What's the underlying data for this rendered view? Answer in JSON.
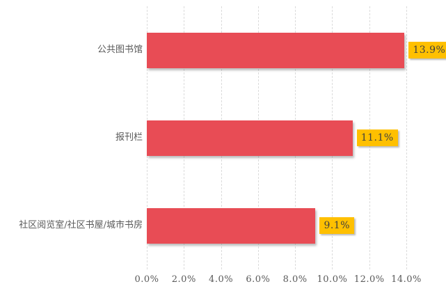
{
  "chart_data": {
    "type": "bar",
    "orientation": "horizontal",
    "title": "",
    "categories": [
      "公共图书馆",
      "报刊栏",
      "社区阅览室/社区书屋/城市书房"
    ],
    "values": [
      13.9,
      11.1,
      9.1
    ],
    "value_labels": [
      "13.9%",
      "11.1%",
      "9.1%"
    ],
    "x_ticks": [
      "0.0%",
      "2.0%",
      "4.0%",
      "6.0%",
      "8.0%",
      "10.0%",
      "12.0%",
      "14.0%"
    ],
    "x_tick_values": [
      0,
      2,
      4,
      6,
      8,
      10,
      12,
      14
    ],
    "xlim": [
      0,
      14
    ],
    "grid": "vertical-dashed",
    "legend": "none",
    "colors": {
      "bar": "#E84C55",
      "value_badge_bg": "#FFC000",
      "value_badge_text": "#3F3F3F",
      "category_text": "#595959",
      "axis_text": "#595959",
      "gridline": "#DBDBDB",
      "background": "#FFFFFF"
    }
  }
}
